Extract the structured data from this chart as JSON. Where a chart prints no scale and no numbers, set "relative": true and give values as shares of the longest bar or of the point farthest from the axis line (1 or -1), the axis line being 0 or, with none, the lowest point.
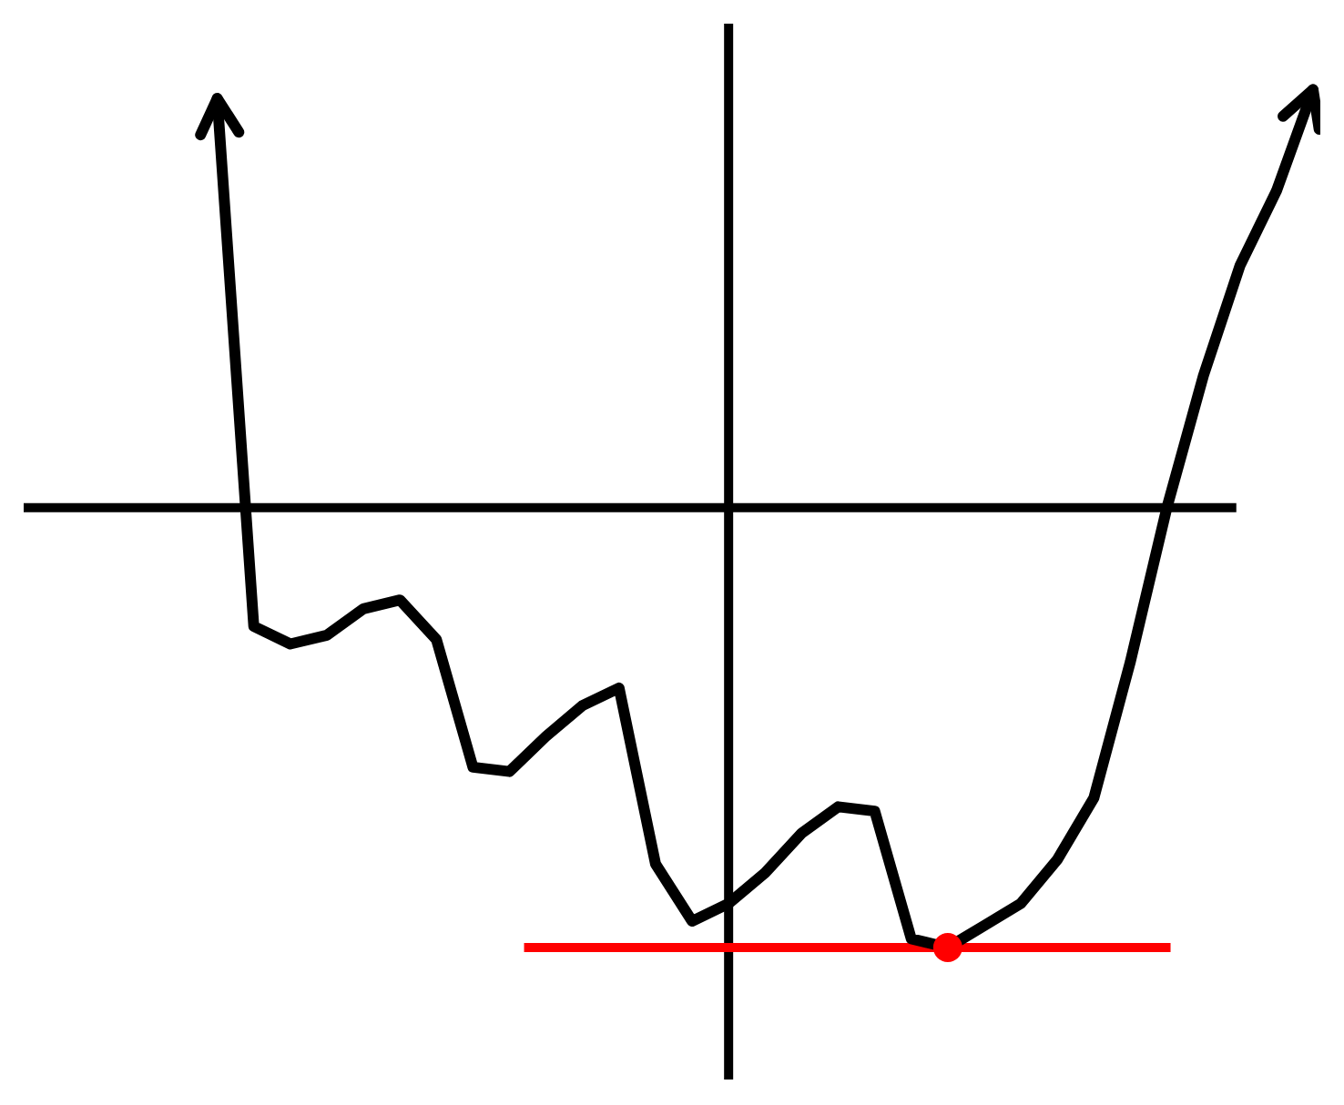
{
  "chart_data": {
    "type": "line",
    "relative": true,
    "tick_labels": false,
    "line_style": "solid",
    "categories": [
      null,
      null,
      null,
      null,
      null,
      null,
      null,
      null,
      null,
      null,
      null,
      null,
      null,
      null,
      null,
      null,
      null,
      null,
      null,
      null,
      null,
      null,
      null,
      null,
      null,
      null,
      null,
      null,
      null,
      null,
      null
    ],
    "series": [
      {
        "color": "#000000",
        "values": [
          0.93,
          -0.27,
          -0.31,
          -0.29,
          -0.23,
          -0.21,
          -0.3,
          -0.59,
          -0.6,
          -0.52,
          -0.45,
          -0.41,
          -0.81,
          -0.94,
          -0.9,
          -0.83,
          -0.74,
          -0.68,
          -0.69,
          -0.98,
          -1,
          -0.95,
          -0.9,
          -0.8,
          -0.66,
          -0.35,
          0,
          0.3,
          0.55,
          0.72,
          0.95
        ]
      }
    ],
    "ref_lines": [
      {
        "axis": "y",
        "value": -1,
        "color": "#ff0000"
      }
    ]
  }
}
